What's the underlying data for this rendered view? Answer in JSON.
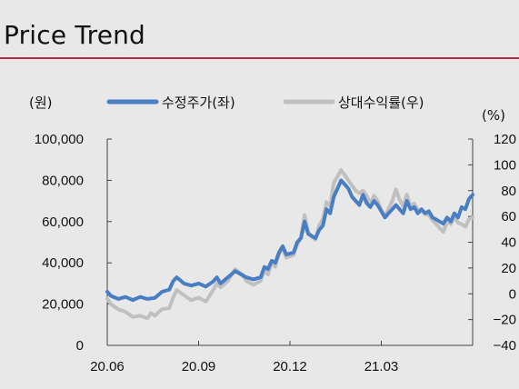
{
  "page": {
    "title": "Price Trend",
    "accent_color": "#c0224a"
  },
  "chart_data": {
    "type": "line",
    "left_unit": "(원)",
    "right_unit": "(%)",
    "legend": [
      {
        "name": "수정주가(좌)",
        "color": "#4a7ec4"
      },
      {
        "name": "상대수익률(우)",
        "color": "#c0c0c0"
      }
    ],
    "x_labels": [
      "20.06",
      "20.09",
      "20.12",
      "21.03"
    ],
    "x_label_positions": [
      0,
      0.25,
      0.5,
      0.75
    ],
    "y_left": {
      "range": [
        0,
        100000
      ],
      "ticks": [
        0,
        20000,
        40000,
        60000,
        80000,
        100000
      ],
      "tick_labels": [
        "0",
        "20,000",
        "40,000",
        "60,000",
        "80,000",
        "100,000"
      ]
    },
    "y_right": {
      "range": [
        -40,
        120
      ],
      "ticks": [
        -40,
        -20,
        0,
        20,
        40,
        60,
        80,
        100,
        120
      ],
      "tick_labels": [
        "−40",
        "−20",
        "0",
        "20",
        "40",
        "60",
        "80",
        "100",
        "120"
      ]
    },
    "series": [
      {
        "name": "수정주가(좌)",
        "axis": "left",
        "color": "#4a7ec4",
        "points": [
          [
            0.0,
            26000
          ],
          [
            0.01,
            24000
          ],
          [
            0.03,
            22500
          ],
          [
            0.05,
            23500
          ],
          [
            0.07,
            22000
          ],
          [
            0.09,
            23500
          ],
          [
            0.11,
            22500
          ],
          [
            0.13,
            23000
          ],
          [
            0.15,
            26000
          ],
          [
            0.17,
            27000
          ],
          [
            0.18,
            31000
          ],
          [
            0.19,
            33000
          ],
          [
            0.21,
            30000
          ],
          [
            0.23,
            29000
          ],
          [
            0.25,
            30000
          ],
          [
            0.27,
            28500
          ],
          [
            0.29,
            31000
          ],
          [
            0.3,
            33000
          ],
          [
            0.31,
            30000
          ],
          [
            0.33,
            33000
          ],
          [
            0.35,
            36000
          ],
          [
            0.37,
            34000
          ],
          [
            0.38,
            33000
          ],
          [
            0.4,
            32000
          ],
          [
            0.42,
            33000
          ],
          [
            0.43,
            38000
          ],
          [
            0.44,
            37000
          ],
          [
            0.45,
            41000
          ],
          [
            0.46,
            40000
          ],
          [
            0.47,
            45000
          ],
          [
            0.48,
            48000
          ],
          [
            0.49,
            44000
          ],
          [
            0.51,
            45000
          ],
          [
            0.52,
            50000
          ],
          [
            0.53,
            52000
          ],
          [
            0.54,
            60000
          ],
          [
            0.55,
            54000
          ],
          [
            0.56,
            53000
          ],
          [
            0.57,
            52000
          ],
          [
            0.58,
            56000
          ],
          [
            0.59,
            58000
          ],
          [
            0.6,
            66000
          ],
          [
            0.61,
            64000
          ],
          [
            0.62,
            72000
          ],
          [
            0.63,
            76000
          ],
          [
            0.64,
            80000
          ],
          [
            0.65,
            78000
          ],
          [
            0.66,
            76000
          ],
          [
            0.67,
            72000
          ],
          [
            0.68,
            70000
          ],
          [
            0.69,
            68000
          ],
          [
            0.7,
            73000
          ],
          [
            0.71,
            69000
          ],
          [
            0.72,
            67000
          ],
          [
            0.73,
            70000
          ],
          [
            0.74,
            68000
          ],
          [
            0.75,
            65000
          ],
          [
            0.76,
            62000
          ],
          [
            0.77,
            64000
          ],
          [
            0.78,
            66000
          ],
          [
            0.79,
            68000
          ],
          [
            0.8,
            66000
          ],
          [
            0.81,
            64000
          ],
          [
            0.82,
            70000
          ],
          [
            0.83,
            66000
          ],
          [
            0.84,
            67000
          ],
          [
            0.85,
            64000
          ],
          [
            0.86,
            66000
          ],
          [
            0.87,
            64000
          ],
          [
            0.88,
            65000
          ],
          [
            0.89,
            62000
          ],
          [
            0.9,
            61000
          ],
          [
            0.91,
            60000
          ],
          [
            0.92,
            59000
          ],
          [
            0.93,
            62000
          ],
          [
            0.94,
            60000
          ],
          [
            0.95,
            64000
          ],
          [
            0.96,
            62000
          ],
          [
            0.97,
            67000
          ],
          [
            0.98,
            66000
          ],
          [
            0.99,
            71000
          ],
          [
            1.0,
            73000
          ]
        ]
      },
      {
        "name": "상대수익률(우)",
        "axis": "right",
        "color": "#c0c0c0",
        "points": [
          [
            0.0,
            -4
          ],
          [
            0.01,
            -8
          ],
          [
            0.03,
            -12
          ],
          [
            0.05,
            -14
          ],
          [
            0.07,
            -18
          ],
          [
            0.09,
            -17
          ],
          [
            0.11,
            -19
          ],
          [
            0.12,
            -15
          ],
          [
            0.13,
            -17
          ],
          [
            0.15,
            -12
          ],
          [
            0.17,
            -11
          ],
          [
            0.18,
            -3
          ],
          [
            0.19,
            3
          ],
          [
            0.21,
            -1
          ],
          [
            0.23,
            -5
          ],
          [
            0.25,
            -3
          ],
          [
            0.27,
            -6
          ],
          [
            0.29,
            3
          ],
          [
            0.3,
            8
          ],
          [
            0.31,
            5
          ],
          [
            0.33,
            10
          ],
          [
            0.35,
            19
          ],
          [
            0.37,
            15
          ],
          [
            0.38,
            10
          ],
          [
            0.4,
            7
          ],
          [
            0.42,
            10
          ],
          [
            0.43,
            18
          ],
          [
            0.44,
            15
          ],
          [
            0.45,
            24
          ],
          [
            0.46,
            21
          ],
          [
            0.47,
            31
          ],
          [
            0.48,
            35
          ],
          [
            0.49,
            28
          ],
          [
            0.51,
            30
          ],
          [
            0.52,
            38
          ],
          [
            0.53,
            44
          ],
          [
            0.54,
            61
          ],
          [
            0.55,
            48
          ],
          [
            0.56,
            44
          ],
          [
            0.57,
            42
          ],
          [
            0.58,
            53
          ],
          [
            0.59,
            58
          ],
          [
            0.6,
            71
          ],
          [
            0.61,
            68
          ],
          [
            0.62,
            86
          ],
          [
            0.63,
            91
          ],
          [
            0.64,
            96
          ],
          [
            0.65,
            92
          ],
          [
            0.66,
            88
          ],
          [
            0.67,
            84
          ],
          [
            0.68,
            80
          ],
          [
            0.69,
            78
          ],
          [
            0.7,
            80
          ],
          [
            0.71,
            76
          ],
          [
            0.72,
            70
          ],
          [
            0.73,
            76
          ],
          [
            0.74,
            72
          ],
          [
            0.75,
            65
          ],
          [
            0.76,
            60
          ],
          [
            0.77,
            66
          ],
          [
            0.78,
            72
          ],
          [
            0.79,
            81
          ],
          [
            0.8,
            73
          ],
          [
            0.81,
            68
          ],
          [
            0.82,
            77
          ],
          [
            0.83,
            68
          ],
          [
            0.84,
            70
          ],
          [
            0.85,
            65
          ],
          [
            0.86,
            64
          ],
          [
            0.87,
            62
          ],
          [
            0.88,
            61
          ],
          [
            0.89,
            57
          ],
          [
            0.9,
            54
          ],
          [
            0.91,
            51
          ],
          [
            0.92,
            48
          ],
          [
            0.93,
            56
          ],
          [
            0.94,
            54
          ],
          [
            0.95,
            60
          ],
          [
            0.96,
            55
          ],
          [
            0.97,
            54
          ],
          [
            0.98,
            52
          ],
          [
            0.99,
            58
          ],
          [
            1.0,
            59
          ]
        ]
      }
    ]
  }
}
